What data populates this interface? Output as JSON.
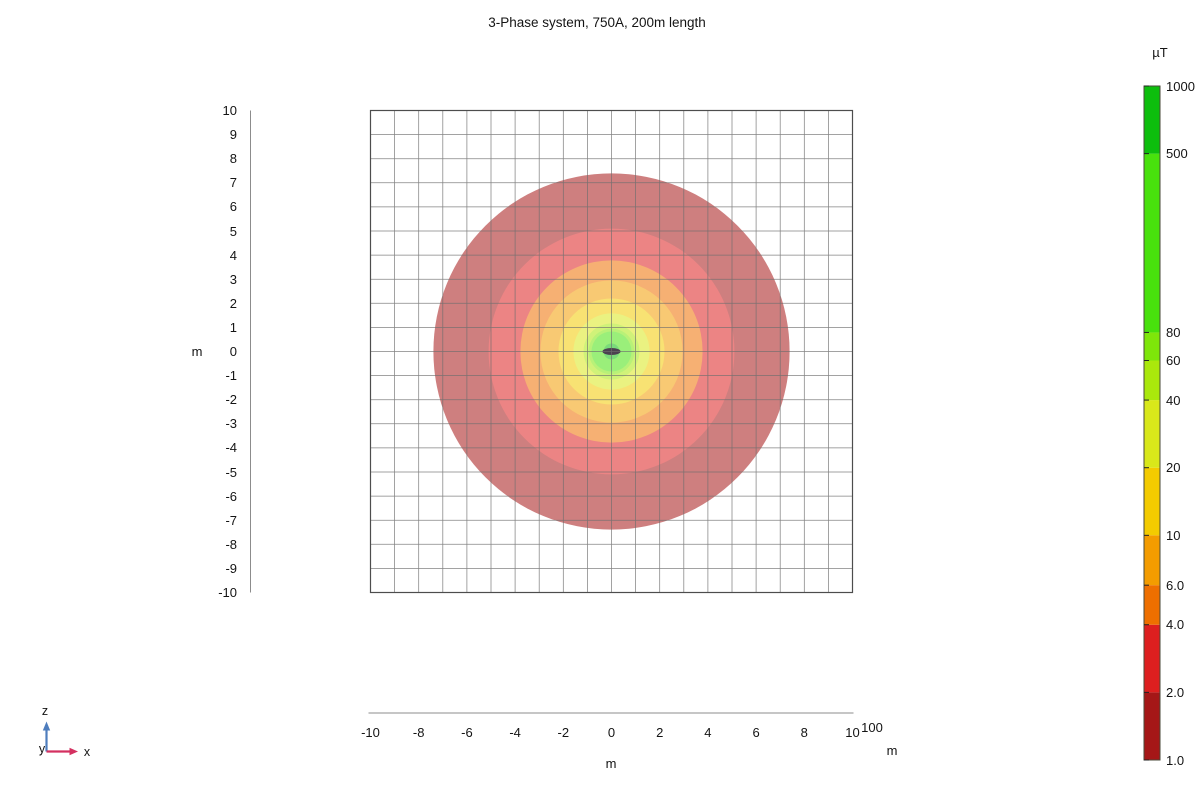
{
  "chart_data": {
    "type": "heatmap",
    "title": "3-Phase system, 750A, 200m length",
    "field_unit": "µT",
    "x_axis": {
      "unit_label": "m",
      "range": [
        -10,
        10
      ],
      "tick_values": [
        -10,
        -8,
        -6,
        -4,
        -2,
        0,
        2,
        4,
        6,
        8,
        10
      ],
      "tick_labels": [
        "-10",
        "-8",
        "-6",
        "-4",
        "-2",
        "0",
        "2",
        "4",
        "6",
        "8",
        "10"
      ]
    },
    "y_axis": {
      "unit_label": "m",
      "range": [
        -10,
        10
      ],
      "tick_values": [
        10,
        9,
        8,
        7,
        6,
        5,
        4,
        3,
        2,
        1,
        0,
        -1,
        -2,
        -3,
        -4,
        -5,
        -6,
        -7,
        -8,
        -9,
        -10
      ],
      "tick_labels": [
        "10",
        "9",
        "8",
        "7",
        "6",
        "5",
        "4",
        "3",
        "2",
        "1",
        "0",
        "-1",
        "-2",
        "-3",
        "-4",
        "-5",
        "-6",
        "-7",
        "-8",
        "-9",
        "-10"
      ]
    },
    "depth_axis": {
      "tick_label": "100",
      "unit_label": "m"
    },
    "grid": {
      "on": true,
      "step_m": 1
    },
    "colorbar": {
      "unit_label": "µT",
      "scale": "log",
      "value_range": [
        1,
        1000
      ],
      "tick_values": [
        1000,
        500,
        80,
        60,
        40,
        20,
        10,
        6,
        4,
        2,
        1
      ],
      "tick_labels": [
        "1000",
        "500",
        "80",
        "60",
        "40",
        "20",
        "10",
        "6.0",
        "4.0",
        "2.0",
        "1.0"
      ],
      "bands": [
        {
          "from": 1,
          "to": 2,
          "color": "#a51717"
        },
        {
          "from": 2,
          "to": 4,
          "color": "#dd1f1f"
        },
        {
          "from": 4,
          "to": 6,
          "color": "#ee6f00"
        },
        {
          "from": 6,
          "to": 10,
          "color": "#f39c00"
        },
        {
          "from": 10,
          "to": 20,
          "color": "#f3cb00"
        },
        {
          "from": 20,
          "to": 40,
          "color": "#d9e81a"
        },
        {
          "from": 40,
          "to": 60,
          "color": "#aae80c"
        },
        {
          "from": 60,
          "to": 80,
          "color": "#7ee60a"
        },
        {
          "from": 80,
          "to": 500,
          "color": "#48e10d"
        },
        {
          "from": 500,
          "to": 1000,
          "color": "#0dbe0d"
        }
      ]
    },
    "contour_rings": [
      {
        "level_uT": 1,
        "outer_radius_m": 7.39
      },
      {
        "level_uT": 2,
        "outer_radius_m": 5.1
      },
      {
        "level_uT": 4,
        "outer_radius_m": 3.78
      },
      {
        "level_uT": 6,
        "outer_radius_m": 2.95
      },
      {
        "level_uT": 10,
        "outer_radius_m": 2.2
      },
      {
        "level_uT": 20,
        "outer_radius_m": 1.58
      },
      {
        "level_uT": 40,
        "outer_radius_m": 1.16
      },
      {
        "level_uT": 60,
        "outer_radius_m": 0.95
      },
      {
        "level_uT": 80,
        "outer_radius_m": 0.83
      },
      {
        "level_uT": 500,
        "outer_radius_m": 0.33
      },
      {
        "level_uT": 1000,
        "outer_radius_m": 0.23
      }
    ],
    "fill_opacity_over_white": 0.55,
    "conductor": {
      "x_m": 0,
      "y_m": 0,
      "width_m": 0.75,
      "height_m": 0.29,
      "color": "#4b4150"
    }
  },
  "triad": {
    "z_label": "z",
    "x_label": "x",
    "y_label": "y",
    "z_color": "#4e7dbd",
    "x_color": "#d43060"
  }
}
